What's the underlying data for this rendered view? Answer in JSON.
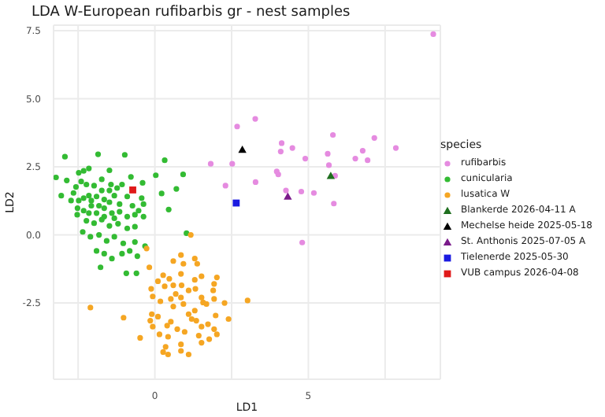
{
  "chart_data": {
    "type": "scatter",
    "title": "LDA W-European rufibarbis gr - nest samples",
    "xlabel": "LD1",
    "ylabel": "LD2",
    "legend_title": "species",
    "legend": "right",
    "grid": true,
    "xlim": [
      -3.3,
      9.3
    ],
    "ylim": [
      -5.3,
      7.7
    ],
    "xticks": [
      {
        "value": -2.5,
        "label": null
      },
      0,
      {
        "value": 2.5,
        "label": null
      },
      5,
      {
        "value": 7.5,
        "label": null
      }
    ],
    "yticks": [
      -2.5,
      {
        "value": 0,
        "label": "0.0"
      },
      2.5,
      {
        "value": 5,
        "label": "5.0"
      },
      7.5
    ],
    "series": [
      {
        "name": "rufibarbis",
        "color": "#e58be0",
        "marker": "circle",
        "x": [
          9.07,
          2.68,
          3.27,
          1.82,
          2.52,
          2.3,
          3.28,
          3.97,
          4.02,
          4.1,
          4.13,
          4.48,
          4.9,
          4.27,
          4.77,
          5.18,
          5.8,
          5.63,
          5.67,
          5.87,
          5.83,
          6.53,
          6.77,
          6.93,
          7.15,
          7.85,
          4.8
        ],
        "values": [
          7.37,
          3.98,
          4.26,
          2.61,
          2.61,
          1.81,
          1.94,
          2.33,
          2.22,
          3.06,
          3.37,
          3.19,
          2.8,
          1.63,
          1.59,
          1.54,
          3.67,
          2.98,
          2.56,
          2.17,
          1.15,
          2.8,
          3.09,
          2.74,
          3.56,
          3.19,
          -0.28
        ]
      },
      {
        "name": "cunicularia",
        "color": "#33bb33",
        "marker": "circle",
        "x": [
          -2.93,
          -2.32,
          -2.15,
          -1.85,
          -0.98,
          0.32,
          -3.22,
          -2.87,
          -2.48,
          -2.57,
          -2.4,
          -2.23,
          -1.98,
          -1.73,
          -1.48,
          -1.43,
          -1.07,
          -0.78,
          -0.4,
          0.03,
          0.92,
          0.7,
          0.22,
          -3.05,
          -2.65,
          -2.32,
          -2.15,
          -1.9,
          -1.65,
          -1.32,
          -0.9,
          -0.43,
          -2.52,
          -2.32,
          -2.07,
          -1.9,
          -1.65,
          -1.4,
          -1.15,
          -0.9,
          -0.65,
          -0.37,
          -0.37,
          0.45,
          -2.23,
          -1.98,
          -1.73,
          -1.48,
          -1.2,
          -0.9,
          -0.65,
          -2.35,
          -2.1,
          -1.82,
          -1.57,
          -1.32,
          -1.03,
          -0.65,
          -0.32,
          -1.9,
          -1.65,
          -1.07,
          -0.82,
          -0.57,
          -1.4,
          -1.77,
          -0.93,
          -0.6,
          1.03,
          -2.73,
          -2.48,
          -1.48,
          -1.15,
          -2.07,
          -1.82,
          -2.15,
          -1.65,
          -1.32,
          -2.53,
          -0.73,
          -0.53,
          -1.73,
          -1.48,
          -1.23
        ],
        "values": [
          2.87,
          2.35,
          2.44,
          2.96,
          2.94,
          2.74,
          2.11,
          2.0,
          2.28,
          1.76,
          1.96,
          1.85,
          1.81,
          2.04,
          2.37,
          1.85,
          1.85,
          2.13,
          1.91,
          2.19,
          2.22,
          1.69,
          1.52,
          1.44,
          1.54,
          1.35,
          1.44,
          1.41,
          1.3,
          1.44,
          1.41,
          1.35,
          0.98,
          0.89,
          1.07,
          0.8,
          0.98,
          0.8,
          0.85,
          0.67,
          0.74,
          1.13,
          0.67,
          0.93,
          0.52,
          0.43,
          0.56,
          0.33,
          0.41,
          0.24,
          0.3,
          0.11,
          -0.07,
          0,
          -0.22,
          -0.07,
          -0.31,
          -0.26,
          -0.41,
          -0.59,
          -0.69,
          -0.69,
          -0.59,
          -0.78,
          -0.87,
          -1.19,
          -1.41,
          -1.41,
          0.06,
          1.26,
          1.26,
          1.2,
          1.13,
          1.26,
          1.07,
          0.8,
          0.67,
          0.61,
          0.74,
          1.07,
          0.89,
          1.63,
          1.63,
          1.72
        ]
      },
      {
        "name": "lusatica W",
        "color": "#f5a623",
        "marker": "circle",
        "x": [
          1.17,
          -0.27,
          0.85,
          0.6,
          1.3,
          1.38,
          0.93,
          -0.18,
          0.85,
          0.27,
          1.52,
          2.02,
          0.47,
          1.3,
          1.93,
          0.1,
          -0.12,
          0.32,
          0.6,
          0.87,
          1.32,
          1.9,
          -0.07,
          0.18,
          0.52,
          0.93,
          1.52,
          1.57,
          1.68,
          1.93,
          2.27,
          3.02,
          -2.1,
          -0.1,
          0.1,
          0.6,
          1.1,
          1.2,
          1.3,
          1.98,
          2.4,
          -1.02,
          -0.07,
          0.4,
          0.73,
          0.97,
          0.52,
          1.52,
          1.73,
          1.93,
          2.02,
          -0.48,
          0.15,
          0.43,
          1.43,
          1.77,
          1.52,
          0.85,
          0.35,
          0.27,
          0.43,
          0.85,
          1.1,
          -0.15,
          1.35,
          1.1,
          0.68,
          0.85
        ],
        "values": [
          0,
          -0.5,
          -0.74,
          -0.96,
          -0.87,
          -1.06,
          -1.06,
          -1.19,
          -1.43,
          -1.48,
          -1.52,
          -1.56,
          -1.61,
          -1.65,
          -1.8,
          -1.7,
          -1.98,
          -1.89,
          -1.85,
          -1.85,
          -1.98,
          -2.04,
          -2.26,
          -2.44,
          -2.35,
          -2.54,
          -2.3,
          -2.48,
          -2.54,
          -2.35,
          -2.5,
          -2.41,
          -2.67,
          -2.91,
          -3.0,
          -2.63,
          -2.91,
          -3.09,
          -2.78,
          -2.96,
          -3.09,
          -3.04,
          -3.37,
          -3.33,
          -3.46,
          -3.56,
          -3.19,
          -3.37,
          -3.28,
          -3.46,
          -3.65,
          -3.78,
          -3.65,
          -3.74,
          -3.7,
          -3.83,
          -3.96,
          -4.02,
          -4.11,
          -4.3,
          -4.39,
          -4.26,
          -4.39,
          -3.15,
          -3.15,
          -2.04,
          -2.17,
          -2.3
        ]
      },
      {
        "name": "Blankerde 2026-04-11 A",
        "color": "#1f6f1f",
        "marker": "triangle",
        "x": [
          5.73
        ],
        "values": [
          2.17
        ]
      },
      {
        "name": "Mechelse heide 2025-05-18",
        "color": "#000000",
        "marker": "triangle",
        "x": [
          2.85
        ],
        "values": [
          3.13
        ]
      },
      {
        "name": "St. Anthonis 2025-07-05 A",
        "color": "#7a1a8a",
        "marker": "triangle",
        "x": [
          4.33
        ],
        "values": [
          1.41
        ]
      },
      {
        "name": "Tielenerde 2025-05-30",
        "color": "#1a1ae0",
        "marker": "square",
        "x": [
          2.65
        ],
        "values": [
          1.17
        ]
      },
      {
        "name": "VUB campus 2026-04-08",
        "color": "#e01a1a",
        "marker": "square",
        "x": [
          -0.72
        ],
        "values": [
          1.65
        ]
      }
    ]
  }
}
